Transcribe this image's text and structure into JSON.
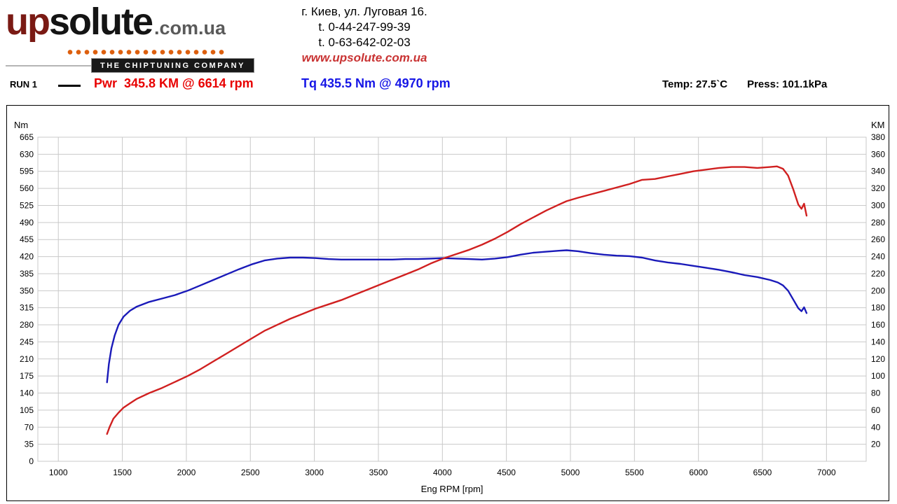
{
  "header": {
    "logo": {
      "part1": "up",
      "part2": "solute",
      "suffix": ".com.ua",
      "tagline": "THE CHIPTUNING COMPANY"
    },
    "address": {
      "line1": "г. Киев, ул. Луговая 16.",
      "line2": "t. 0-44-247-99-39",
      "line3": "t. 0-63-642-02-03",
      "website": "www.upsolute.com.ua"
    }
  },
  "legend": {
    "run_label": "RUN 1",
    "power_reading": "Pwr  345.8 KM @ 6614 rpm",
    "torque_reading": "Tq 435.5 Nm @ 4970 rpm",
    "temp": "Temp: 27.5`C",
    "press": "Press: 101.1kPa"
  },
  "chart_data": {
    "type": "line",
    "title": "",
    "xlabel": "Eng RPM [rpm]",
    "grid_color": "#c9c9c9",
    "x_axis": {
      "min": 840,
      "max": 7310,
      "ticks": [
        1000,
        1500,
        2000,
        2500,
        3000,
        3500,
        4000,
        4500,
        5000,
        5500,
        6000,
        6500,
        7000
      ]
    },
    "left_axis": {
      "label": "Nm",
      "min": 0,
      "max": 665,
      "ticks": [
        0,
        35,
        70,
        105,
        140,
        175,
        210,
        245,
        280,
        315,
        350,
        385,
        420,
        455,
        490,
        525,
        560,
        595,
        630,
        665
      ]
    },
    "right_axis": {
      "label": "KM",
      "min": 0,
      "max": 380,
      "ticks": [
        20,
        40,
        60,
        80,
        100,
        120,
        140,
        160,
        180,
        200,
        220,
        240,
        260,
        280,
        300,
        320,
        340,
        360,
        380
      ]
    },
    "series": [
      {
        "name": "Torque",
        "data_name": "torque-curve",
        "axis": "left",
        "color": "#1a1ab9",
        "peak": "435.5 Nm @ 4970 rpm",
        "points": [
          [
            1380,
            162
          ],
          [
            1395,
            200
          ],
          [
            1415,
            232
          ],
          [
            1440,
            258
          ],
          [
            1470,
            280
          ],
          [
            1510,
            297
          ],
          [
            1560,
            309
          ],
          [
            1610,
            317
          ],
          [
            1660,
            322
          ],
          [
            1710,
            327
          ],
          [
            1810,
            334
          ],
          [
            1910,
            341
          ],
          [
            2010,
            350
          ],
          [
            2110,
            361
          ],
          [
            2210,
            372
          ],
          [
            2310,
            383
          ],
          [
            2410,
            394
          ],
          [
            2510,
            404
          ],
          [
            2610,
            412
          ],
          [
            2710,
            416
          ],
          [
            2810,
            418
          ],
          [
            2910,
            418
          ],
          [
            3010,
            417
          ],
          [
            3110,
            415
          ],
          [
            3210,
            414
          ],
          [
            3310,
            414
          ],
          [
            3410,
            414
          ],
          [
            3510,
            414
          ],
          [
            3610,
            414
          ],
          [
            3710,
            415
          ],
          [
            3810,
            415
          ],
          [
            3910,
            416
          ],
          [
            4010,
            417
          ],
          [
            4110,
            416
          ],
          [
            4210,
            415
          ],
          [
            4310,
            414
          ],
          [
            4410,
            416
          ],
          [
            4510,
            419
          ],
          [
            4610,
            424
          ],
          [
            4710,
            428
          ],
          [
            4810,
            430
          ],
          [
            4910,
            432
          ],
          [
            4970,
            433
          ],
          [
            5060,
            431
          ],
          [
            5160,
            427
          ],
          [
            5260,
            424
          ],
          [
            5360,
            422
          ],
          [
            5460,
            421
          ],
          [
            5560,
            418
          ],
          [
            5660,
            412
          ],
          [
            5760,
            408
          ],
          [
            5860,
            405
          ],
          [
            5960,
            401
          ],
          [
            6060,
            397
          ],
          [
            6160,
            393
          ],
          [
            6260,
            388
          ],
          [
            6360,
            382
          ],
          [
            6460,
            378
          ],
          [
            6560,
            372
          ],
          [
            6620,
            367
          ],
          [
            6660,
            361
          ],
          [
            6700,
            350
          ],
          [
            6740,
            332
          ],
          [
            6780,
            314
          ],
          [
            6805,
            308
          ],
          [
            6825,
            316
          ],
          [
            6845,
            304
          ]
        ]
      },
      {
        "name": "Power",
        "data_name": "power-curve",
        "axis": "right",
        "color": "#d02020",
        "peak": "345.8 KM @ 6614 rpm",
        "points": [
          [
            1380,
            32
          ],
          [
            1400,
            40
          ],
          [
            1430,
            50
          ],
          [
            1470,
            57
          ],
          [
            1510,
            63
          ],
          [
            1560,
            68
          ],
          [
            1610,
            73
          ],
          [
            1710,
            80
          ],
          [
            1810,
            86
          ],
          [
            1910,
            93
          ],
          [
            2010,
            100
          ],
          [
            2110,
            108
          ],
          [
            2210,
            117
          ],
          [
            2310,
            126
          ],
          [
            2410,
            135
          ],
          [
            2510,
            144
          ],
          [
            2610,
            153
          ],
          [
            2710,
            160
          ],
          [
            2810,
            167
          ],
          [
            2910,
            173
          ],
          [
            3010,
            179
          ],
          [
            3110,
            184
          ],
          [
            3210,
            189
          ],
          [
            3310,
            195
          ],
          [
            3410,
            201
          ],
          [
            3510,
            207
          ],
          [
            3610,
            213
          ],
          [
            3710,
            219
          ],
          [
            3810,
            225
          ],
          [
            3910,
            232
          ],
          [
            4010,
            238
          ],
          [
            4110,
            243
          ],
          [
            4210,
            248
          ],
          [
            4310,
            254
          ],
          [
            4410,
            261
          ],
          [
            4510,
            269
          ],
          [
            4610,
            278
          ],
          [
            4710,
            286
          ],
          [
            4810,
            294
          ],
          [
            4910,
            301
          ],
          [
            4970,
            305
          ],
          [
            5060,
            309
          ],
          [
            5160,
            313
          ],
          [
            5260,
            317
          ],
          [
            5360,
            321
          ],
          [
            5460,
            325
          ],
          [
            5560,
            330
          ],
          [
            5660,
            331
          ],
          [
            5760,
            334
          ],
          [
            5860,
            337
          ],
          [
            5960,
            340
          ],
          [
            6060,
            342
          ],
          [
            6160,
            344
          ],
          [
            6260,
            345
          ],
          [
            6360,
            345
          ],
          [
            6460,
            344
          ],
          [
            6560,
            345
          ],
          [
            6614,
            345.8
          ],
          [
            6660,
            343
          ],
          [
            6700,
            335
          ],
          [
            6740,
            319
          ],
          [
            6780,
            301
          ],
          [
            6805,
            296
          ],
          [
            6825,
            302
          ],
          [
            6845,
            288
          ]
        ]
      }
    ]
  }
}
